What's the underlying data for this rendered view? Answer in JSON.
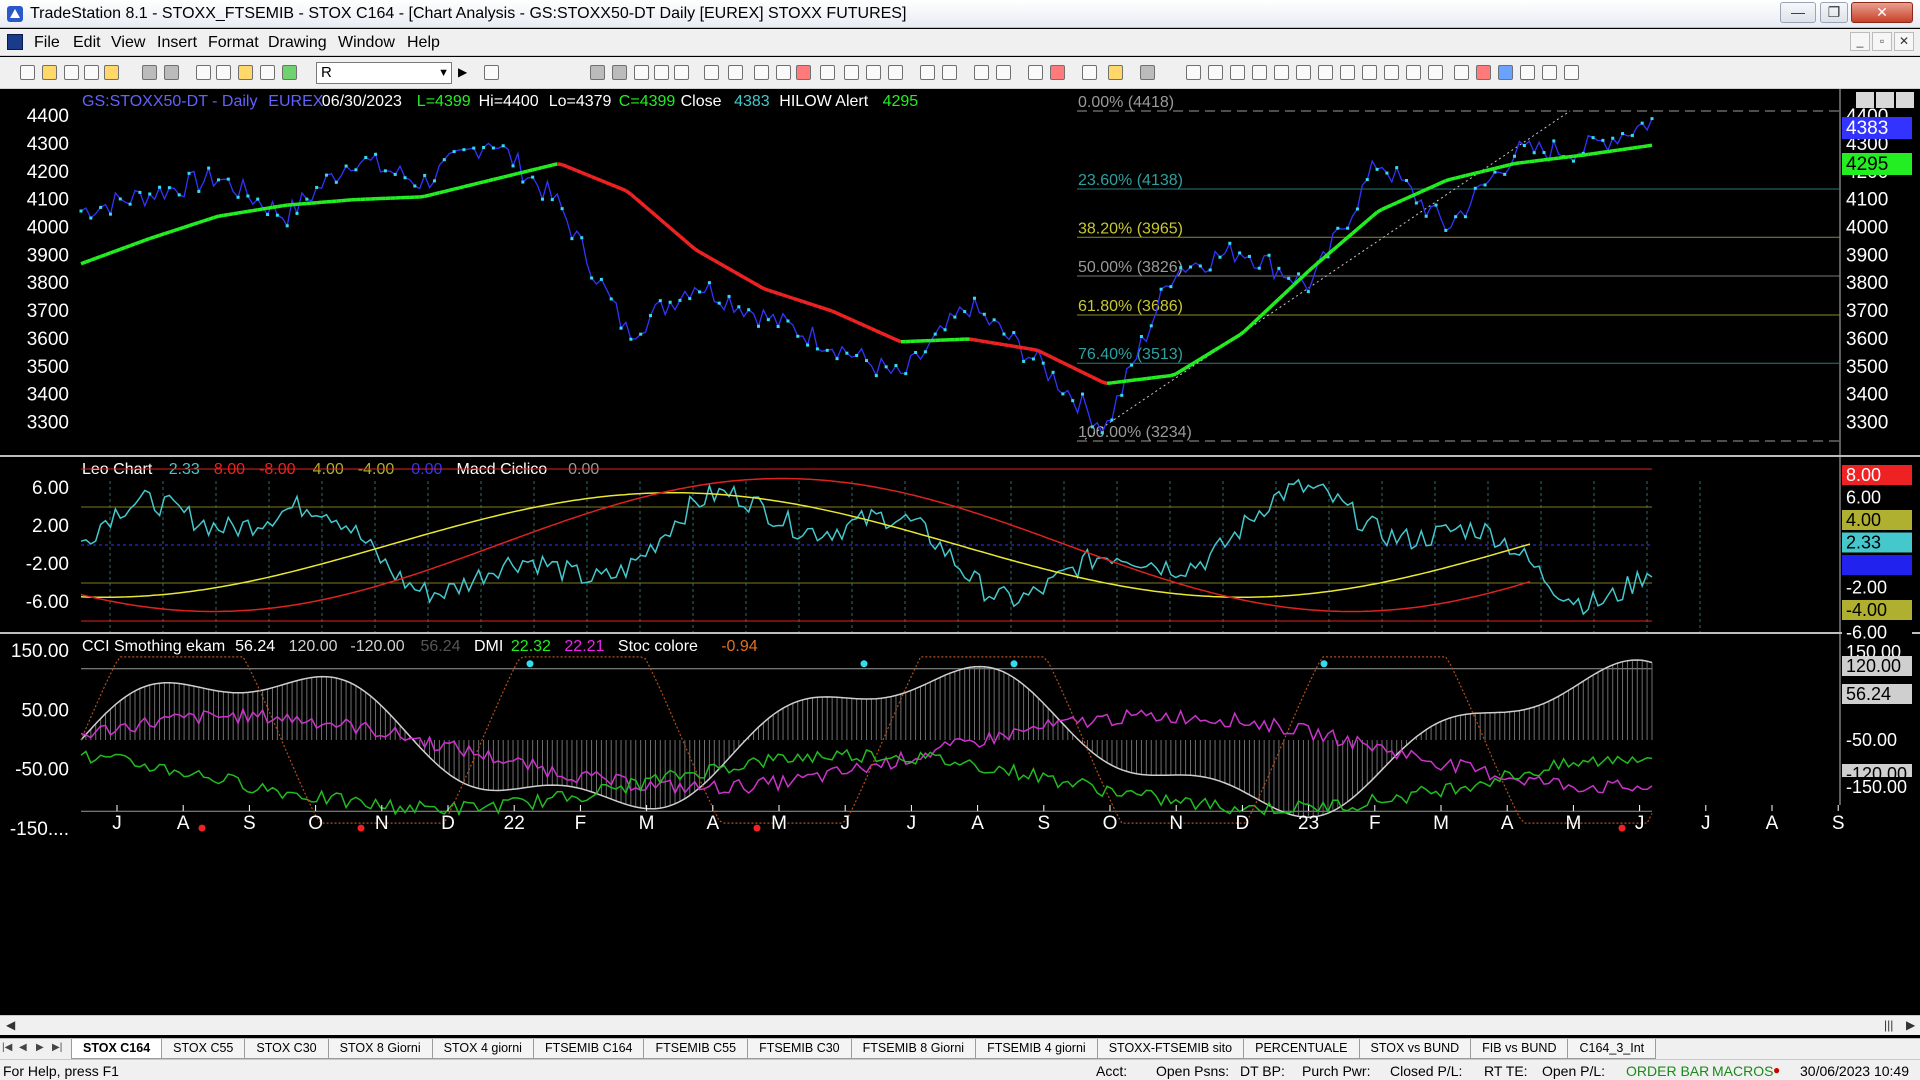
{
  "window": {
    "title": "TradeStation 8.1 - STOXX_FTSEMIB - STOX C164 - [Chart Analysis - GS:STOXX50-DT  Daily  [EUREX] STOXX FUTURES]",
    "minimize": "—",
    "maximize": "❐",
    "close": "✕"
  },
  "menu": {
    "items": [
      "File",
      "Edit",
      "View",
      "Insert",
      "Format",
      "Drawing",
      "Window",
      "Help"
    ]
  },
  "toolbar": {
    "symbol_value": "R"
  },
  "colors": {
    "background": "#000000",
    "price_line": "#3333ff",
    "price_dots": "#33ddee",
    "avg_up": "#22ee22",
    "avg_down": "#ee2222",
    "fib_text": "#2fa0a0",
    "fib_38_text": "#c8c832",
    "leo_cyan": "#44c8cc",
    "osc_yellow": "#e8e832",
    "osc_red": "#dd2222",
    "cci_magenta": "#cc33cc",
    "cci_green": "#22bb22",
    "axis_text": "#ffffff",
    "grid_cyan": "#1f6f6f"
  },
  "chart": {
    "price_header": [
      {
        "text": "GS:STOXX50-DT - Daily",
        "color": "#6262ff"
      },
      {
        "text": "EUREX",
        "color": "#6262ff"
      },
      {
        "text": "06/30/2023",
        "color": "#ffffff"
      },
      {
        "text": "L=4399",
        "color": "#22ee22"
      },
      {
        "text": "Hi=4400",
        "color": "#ffffff"
      },
      {
        "text": "Lo=4379",
        "color": "#ffffff"
      },
      {
        "text": "C=4399",
        "color": "#22ee22"
      },
      {
        "text": "Close",
        "color": "#ffffff"
      },
      {
        "text": "4383",
        "color": "#44c8cc"
      },
      {
        "text": "HILOW Alert",
        "color": "#ffffff"
      },
      {
        "text": "4295",
        "color": "#22ee22"
      }
    ],
    "price_axis": [
      "4400",
      "4300",
      "4200",
      "4100",
      "4000",
      "3900",
      "3800",
      "3700",
      "3600",
      "3500",
      "3400",
      "3300"
    ],
    "price_tags": [
      {
        "text": "4383",
        "bg": "#3333ff",
        "fg": "#ffffff"
      },
      {
        "text": "4295",
        "bg": "#22ee22",
        "fg": "#000000"
      }
    ],
    "fib_levels": [
      {
        "label": "0.00% (4418)",
        "value": 4418,
        "color": "#9a9a9a",
        "line": "#9a9a9a",
        "dashed": true
      },
      {
        "label": "23.60% (4138)",
        "value": 4138,
        "color": "#2fa0a0",
        "line": "#2a7a7a",
        "dashed": false
      },
      {
        "label": "38.20% (3965)",
        "value": 3965,
        "color": "#c8c832",
        "line": "#8a8a2a",
        "dashed": false
      },
      {
        "label": "50.00% (3826)",
        "value": 3826,
        "color": "#9a9a9a",
        "line": "#7a7a7a",
        "dashed": false
      },
      {
        "label": "61.80% (3686)",
        "value": 3686,
        "color": "#c8c832",
        "line": "#8a8a2a",
        "dashed": false
      },
      {
        "label": "76.40% (3513)",
        "value": 3513,
        "color": "#2fa0a0",
        "line": "#2a7a7a",
        "dashed": false
      },
      {
        "label": "100.00% (3234)",
        "value": 3234,
        "color": "#9a9a9a",
        "line": "#9a9a9a",
        "dashed": true
      }
    ],
    "leo_header": [
      {
        "text": "Leo Chart",
        "color": "#ffffff"
      },
      {
        "text": "2.33",
        "color": "#44c8cc"
      },
      {
        "text": "8.00",
        "color": "#ee2222"
      },
      {
        "text": "-8.00",
        "color": "#ee2222"
      },
      {
        "text": "4.00",
        "color": "#b0b030"
      },
      {
        "text": "-4.00",
        "color": "#b0b030"
      },
      {
        "text": "0.00",
        "color": "#3333ff"
      },
      {
        "text": "Macd Ciclico",
        "color": "#ffffff"
      },
      {
        "text": "0.00",
        "color": "#9a9a9a"
      }
    ],
    "leo_axis": [
      "6.00",
      "2.00",
      "-2.00",
      "-6.00"
    ],
    "leo_tags": [
      {
        "text": "8.00",
        "bg": "#ee2222",
        "fg": "#ffffff"
      },
      {
        "text": "6.00",
        "bg": "#000000",
        "fg": "#ffffff"
      },
      {
        "text": "4.00",
        "bg": "#b0b030",
        "fg": "#000000"
      },
      {
        "text": "2.33",
        "bg": "#44c8cc",
        "fg": "#000000"
      },
      {
        "text": "0.00",
        "bg": "#2222ee",
        "fg": "#2222ee"
      },
      {
        "text": "-2.00",
        "bg": "#000000",
        "fg": "#ffffff"
      },
      {
        "text": "-4.00",
        "bg": "#b0b030",
        "fg": "#000000"
      },
      {
        "text": "-6.00",
        "bg": "#000000",
        "fg": "#ffffff"
      },
      {
        "text": "-8.00",
        "bg": "#ee2222",
        "fg": "#ffffff"
      }
    ],
    "cci_header": [
      {
        "text": "CCI Smothing ekam",
        "color": "#ffffff"
      },
      {
        "text": "56.24",
        "color": "#ffffff"
      },
      {
        "text": "120.00",
        "color": "#cfcfcf"
      },
      {
        "text": "-120.00",
        "color": "#cfcfcf"
      },
      {
        "text": "56.24",
        "color": "#555555"
      },
      {
        "text": "DMI",
        "color": "#ffffff"
      },
      {
        "text": "22.32",
        "color": "#22ee22"
      },
      {
        "text": "22.21",
        "color": "#ee22ee"
      },
      {
        "text": "Stoc colore",
        "color": "#ffffff"
      },
      {
        "text": "-0.94",
        "color": "#e07020"
      }
    ],
    "cci_axis": [
      "150.00",
      "50.00",
      "-50.00",
      "-150...."
    ],
    "cci_tags": [
      {
        "text": "150.00",
        "bg": "#000000",
        "fg": "#ffffff"
      },
      {
        "text": "120.00",
        "bg": "#cfcfcf",
        "fg": "#000000"
      },
      {
        "text": "56.24",
        "bg": "#cfcfcf",
        "fg": "#000000"
      },
      {
        "text": "-50.00",
        "bg": "#000000",
        "fg": "#ffffff"
      },
      {
        "text": "-120.00",
        "bg": "#cfcfcf",
        "fg": "#000000"
      },
      {
        "text": "-150.00",
        "bg": "#000000",
        "fg": "#ffffff"
      }
    ],
    "time_axis": [
      "J",
      "A",
      "S",
      "O",
      "N",
      "D",
      "22",
      "F",
      "M",
      "A",
      "M",
      "J",
      "J",
      "A",
      "S",
      "O",
      "N",
      "D",
      "23",
      "F",
      "M",
      "A",
      "M",
      "J",
      "J",
      "A",
      "S"
    ]
  },
  "chart_data": {
    "type": "line",
    "title": "GS:STOXX50-DT - Daily",
    "x": [
      "Jul-21",
      "Aug-21",
      "Sep-21",
      "Oct-21",
      "Nov-21",
      "Dec-21",
      "Jan-22",
      "Feb-22",
      "Mar-22",
      "Apr-22",
      "May-22",
      "Jun-22",
      "Jul-22",
      "Aug-22",
      "Sep-22",
      "Oct-22",
      "Nov-22",
      "Dec-22",
      "Jan-23",
      "Feb-23",
      "Mar-23",
      "Apr-23",
      "May-23",
      "Jun-23"
    ],
    "series": [
      {
        "values": [
          4060,
          4120,
          4180,
          4040,
          4250,
          4160,
          4320,
          4080,
          3620,
          3800,
          3680,
          3580,
          3460,
          3720,
          3520,
          3280,
          3850,
          3920,
          3790,
          4240,
          4000,
          4270,
          4280,
          4383
        ]
      },
      {
        "values": [
          3870,
          3960,
          4040,
          4080,
          4100,
          4110,
          4170,
          4230,
          4130,
          3920,
          3780,
          3700,
          3590,
          3600,
          3560,
          3440,
          3470,
          3620,
          3850,
          4060,
          4170,
          4230,
          4260,
          4295
        ]
      }
    ],
    "ylim": [
      3234,
      4420
    ]
  },
  "tabs": [
    "STOX C164",
    "STOX C55",
    "STOX  C30",
    "STOX 8 Giorni",
    "STOX 4 giorni",
    "FTSEMIB C164",
    "FTSEMIB C55",
    "FTSEMIB C30",
    "FTSEMIB  8 Giorni",
    "FTSEMIB  4 giorni",
    "STOXX-FTSEMIB sito",
    "PERCENTUALE",
    "STOX vs BUND",
    "FIB vs BUND",
    "C164_3_Int"
  ],
  "status": {
    "help": "For Help, press F1",
    "acct": "Acct:",
    "open_psns": "Open Psns:",
    "dt_bp": "DT BP:",
    "purch_pwr": "Purch Pwr:",
    "closed_pl": "Closed P/L:",
    "rt_te": "RT TE:",
    "open_pl": "Open P/L:",
    "order_bar": "ORDER BAR",
    "macros": "MACROS",
    "datetime": "30/06/2023 10:49"
  }
}
